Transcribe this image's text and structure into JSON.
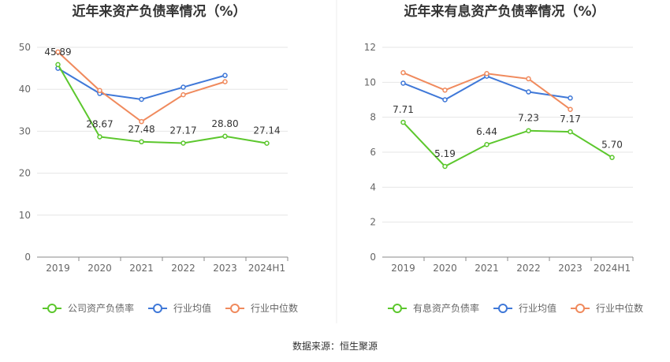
{
  "chart_data": [
    {
      "type": "line",
      "title": "近年来资产负债率情况（%）",
      "categories": [
        "2019",
        "2020",
        "2021",
        "2022",
        "2023",
        "2024H1"
      ],
      "ylim": [
        0,
        50
      ],
      "yticks": [
        0,
        10,
        20,
        30,
        40,
        50
      ],
      "series": [
        {
          "name": "公司资产负债率",
          "color": "#5cc72d",
          "values": [
            45.89,
            28.67,
            27.48,
            27.17,
            28.8,
            27.14
          ],
          "labels": [
            "45.89",
            "28.67",
            "27.48",
            "27.17",
            "28.80",
            "27.14"
          ]
        },
        {
          "name": "行业均值",
          "color": "#3f78d8",
          "values": [
            45.0,
            39.0,
            37.6,
            40.5,
            43.3,
            null
          ]
        },
        {
          "name": "行业中位数",
          "color": "#f08a5d",
          "values": [
            48.9,
            39.7,
            32.3,
            38.7,
            41.8,
            null
          ]
        }
      ],
      "legend": "bottom",
      "grid": true
    },
    {
      "type": "line",
      "title": "近年来有息资产负债率情况（%）",
      "categories": [
        "2019",
        "2020",
        "2021",
        "2022",
        "2023",
        "2024H1"
      ],
      "ylim": [
        0,
        12
      ],
      "yticks": [
        0,
        2,
        4,
        6,
        8,
        10,
        12
      ],
      "series": [
        {
          "name": "有息资产负债率",
          "color": "#5cc72d",
          "values": [
            7.71,
            5.19,
            6.44,
            7.23,
            7.17,
            5.7
          ],
          "labels": [
            "7.71",
            "5.19",
            "6.44",
            "7.23",
            "7.17",
            "5.70"
          ]
        },
        {
          "name": "行业均值",
          "color": "#3f78d8",
          "values": [
            9.95,
            9.0,
            10.35,
            9.45,
            9.1,
            null
          ]
        },
        {
          "name": "行业中位数",
          "color": "#f08a5d",
          "values": [
            10.55,
            9.55,
            10.5,
            10.2,
            8.45,
            null
          ]
        }
      ],
      "legend": "bottom",
      "grid": true
    }
  ],
  "source": "数据来源：恒生聚源"
}
